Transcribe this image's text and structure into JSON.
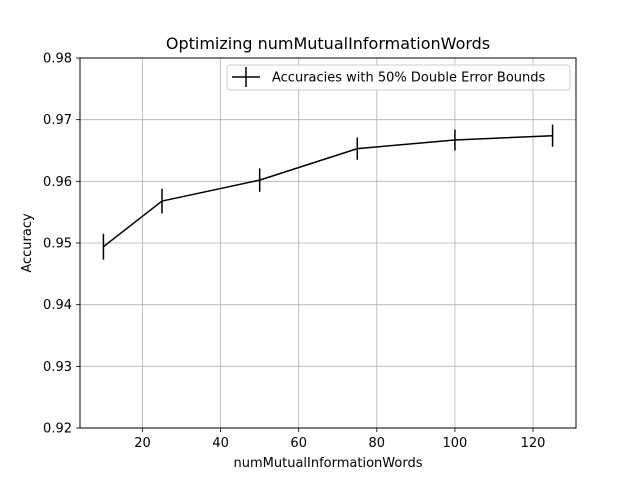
{
  "chart_data": {
    "type": "line",
    "title": "Optimizing numMutualInformationWords",
    "xlabel": "numMutualInformationWords",
    "ylabel": "Accuracy",
    "xlim": [
      4,
      131
    ],
    "ylim": [
      0.92,
      0.98
    ],
    "xticks": [
      20,
      40,
      60,
      80,
      100,
      120
    ],
    "xtick_labels": [
      "20",
      "40",
      "60",
      "80",
      "100",
      "120"
    ],
    "yticks": [
      0.92,
      0.93,
      0.94,
      0.95,
      0.96,
      0.97,
      0.98
    ],
    "ytick_labels": [
      "0.92",
      "0.93",
      "0.94",
      "0.95",
      "0.96",
      "0.97",
      "0.98"
    ],
    "grid": true,
    "legend_position": "top-right",
    "series": [
      {
        "name": "Accuracies with 50% Double Error Bounds",
        "color": "#000000",
        "x": [
          10,
          25,
          50,
          75,
          100,
          125
        ],
        "y": [
          0.9494,
          0.9568,
          0.9602,
          0.9653,
          0.9667,
          0.9674
        ],
        "yerr": [
          0.0021,
          0.002,
          0.0019,
          0.0018,
          0.0017,
          0.0018
        ]
      }
    ]
  }
}
